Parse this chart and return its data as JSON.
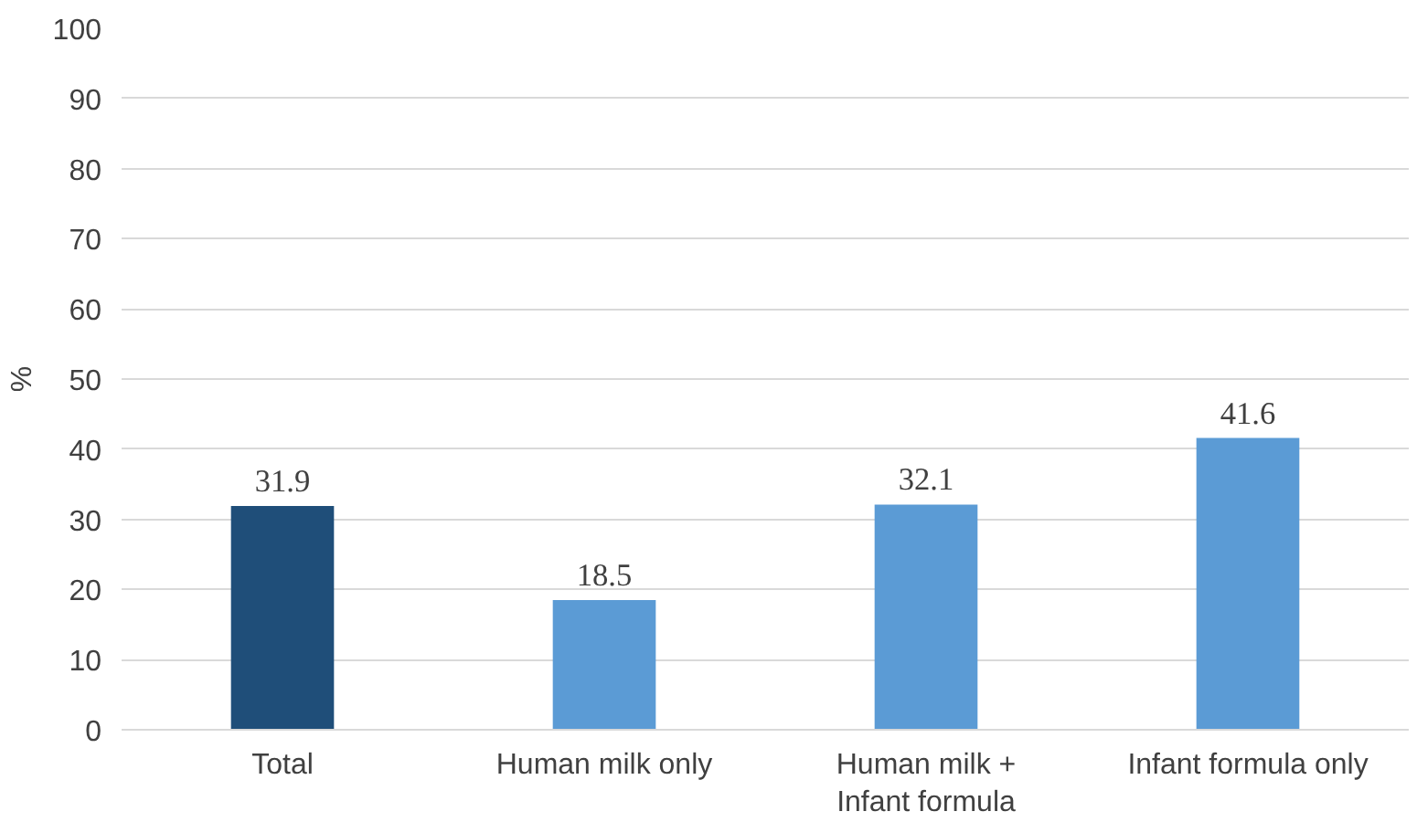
{
  "chart_data": {
    "type": "bar",
    "ylabel": "%",
    "categories": [
      "Total",
      "Human milk only",
      "Human milk +\nInfant formula",
      "Infant formula only"
    ],
    "values": [
      31.9,
      18.5,
      32.1,
      41.6
    ],
    "colors": [
      "#1f4e79",
      "#5b9bd5",
      "#5b9bd5",
      "#5b9bd5"
    ],
    "ylim": [
      0,
      100
    ],
    "yticks": [
      0,
      10,
      20,
      30,
      40,
      50,
      60,
      70,
      80,
      90,
      100
    ],
    "grid": "y",
    "data_labels": true
  }
}
